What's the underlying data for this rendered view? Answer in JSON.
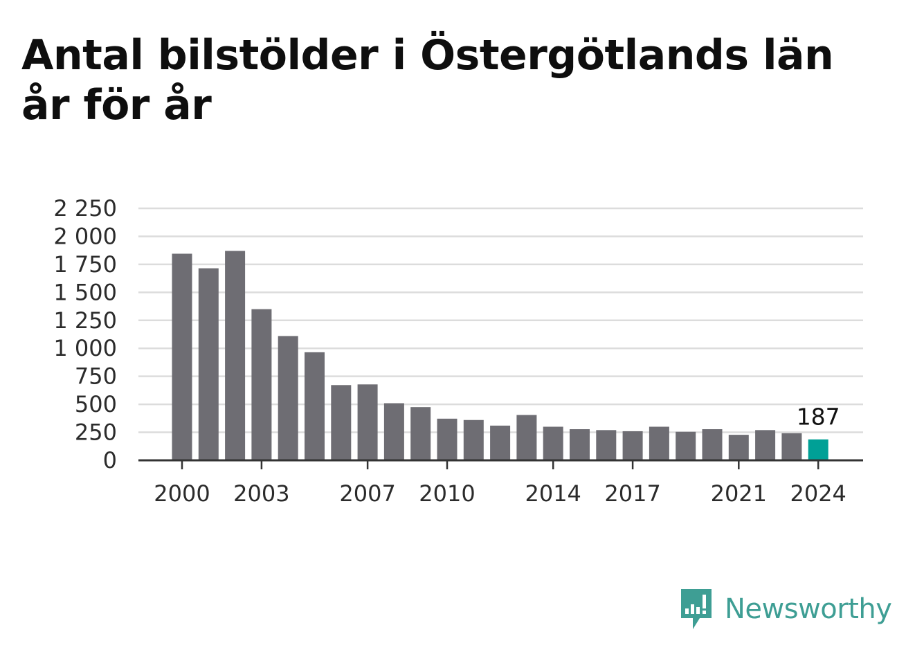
{
  "header": {
    "title": "Antal bilstölder i Östergötlands län år för år"
  },
  "brand": {
    "name": "Newsworthy",
    "icon": "newsworthy-logo-icon",
    "color": "#3e9e94"
  },
  "colors": {
    "bar": "#6e6d73",
    "highlight": "#00a096",
    "grid": "#dcdcdc",
    "axis": "#333333"
  },
  "chart_data": {
    "type": "bar",
    "title": "Antal bilstölder i Östergötlands län år för år",
    "xlabel": "",
    "ylabel": "",
    "x": [
      2000,
      2001,
      2002,
      2003,
      2004,
      2005,
      2006,
      2007,
      2008,
      2009,
      2010,
      2011,
      2012,
      2013,
      2014,
      2015,
      2016,
      2017,
      2018,
      2019,
      2020,
      2021,
      2022,
      2023,
      2024
    ],
    "values": [
      1845,
      1715,
      1870,
      1350,
      1110,
      965,
      672,
      678,
      510,
      475,
      372,
      360,
      310,
      405,
      300,
      278,
      270,
      260,
      300,
      255,
      278,
      228,
      270,
      242,
      187
    ],
    "x_tick_labels": [
      "2000",
      "2003",
      "2007",
      "2010",
      "2014",
      "2017",
      "2021",
      "2024"
    ],
    "y_ticks": [
      0,
      250,
      500,
      750,
      1000,
      1250,
      1500,
      1750,
      2000,
      2250
    ],
    "y_tick_labels": [
      "0",
      "250",
      "500",
      "750",
      "1 000",
      "1 250",
      "1 500",
      "1 750",
      "2 000",
      "2 250"
    ],
    "ylim": [
      0,
      2250
    ],
    "grid": true,
    "highlight": {
      "x": 2024,
      "label": "187"
    }
  }
}
